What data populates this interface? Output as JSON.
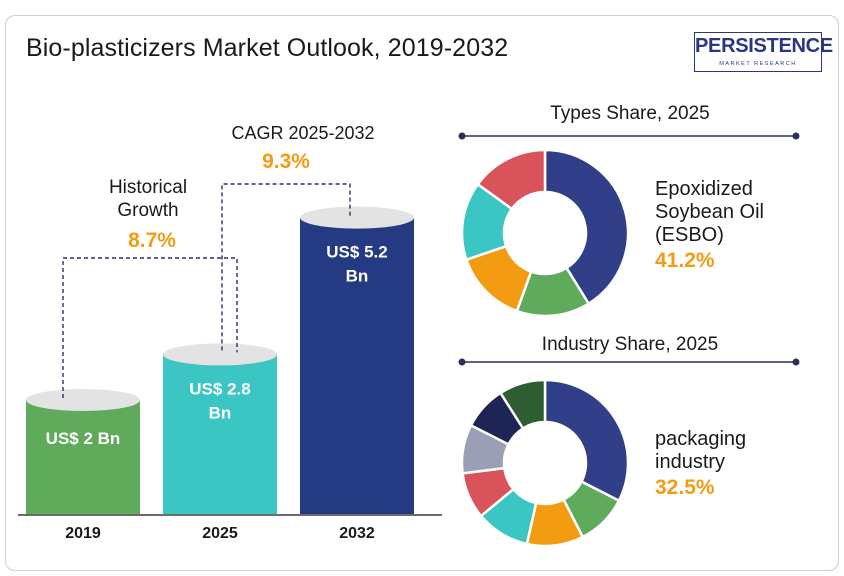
{
  "title": "Bio-plasticizers Market Outlook, 2019-2032",
  "logo": {
    "name": "PERSISTENCE",
    "tagline": "MARKET RESEARCH"
  },
  "colors": {
    "accent": "#f39c12",
    "bar_2019": "#5faa5b",
    "bar_2025": "#3cc6c3",
    "bar_2032": "#243a82",
    "cap": "#e3e3e3"
  },
  "chart_data": [
    {
      "type": "bar",
      "categories": [
        "2019",
        "2025",
        "2032"
      ],
      "values": [
        2,
        2.8,
        5.2
      ],
      "value_labels": [
        "US$ 2 Bn",
        "US$ 2.8 Bn",
        "US$ 5.2 Bn"
      ],
      "unit": "US$ Bn",
      "annotations": [
        {
          "label_lines": [
            "Historical",
            "Growth"
          ],
          "value": "8.7%",
          "from": "2019",
          "to": "2025"
        },
        {
          "label_lines": [
            "CAGR 2025-2032"
          ],
          "value": "9.3%",
          "from": "2025",
          "to": "2032"
        }
      ]
    },
    {
      "type": "pie",
      "title": "Types  Share, 2025",
      "slices": [
        {
          "value": 41.2,
          "color": "#303f87"
        },
        {
          "value": 14.3,
          "color": "#5faa5b"
        },
        {
          "value": 14.3,
          "color": "#f39c12"
        },
        {
          "value": 15.2,
          "color": "#3cc6c3"
        },
        {
          "value": 15.0,
          "color": "#d9535a"
        }
      ],
      "highlight_lines": [
        "Epoxidized",
        "Soybean Oil",
        "(ESBO)"
      ],
      "highlight_value": "41.2%"
    },
    {
      "type": "pie",
      "title": "Industry Share, 2025",
      "slices": [
        {
          "value": 32.5,
          "color": "#303f87"
        },
        {
          "value": 10.0,
          "color": "#5faa5b"
        },
        {
          "value": 11.0,
          "color": "#f39c12"
        },
        {
          "value": 10.5,
          "color": "#3cc6c3"
        },
        {
          "value": 9.0,
          "color": "#d9535a"
        },
        {
          "value": 9.5,
          "color": "#9b9fb5"
        },
        {
          "value": 8.5,
          "color": "#1e2555"
        },
        {
          "value": 9.0,
          "color": "#2d5d31"
        }
      ],
      "highlight_lines": [
        "packaging",
        "industry"
      ],
      "highlight_value": "32.5%"
    }
  ]
}
